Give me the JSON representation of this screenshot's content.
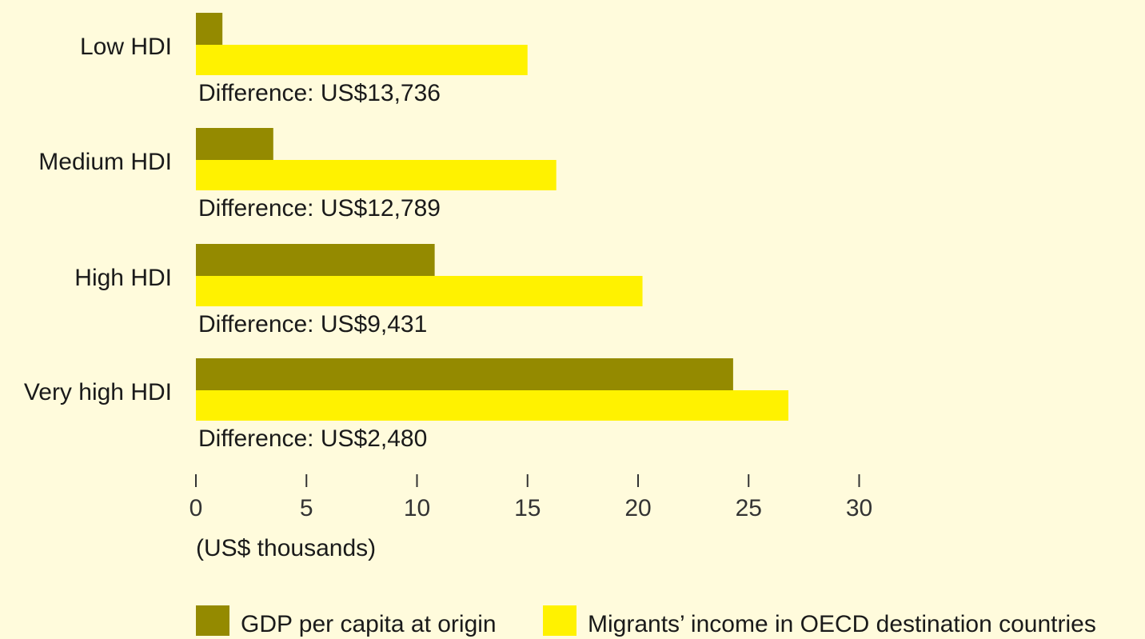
{
  "chart_data": {
    "type": "bar",
    "orientation": "horizontal",
    "categories": [
      "Low HDI",
      "Medium HDI",
      "High HDI",
      "Very high HDI"
    ],
    "series": [
      {
        "name": "GDP per capita at origin",
        "color": "#948A00",
        "values": [
          1.2,
          3.5,
          10.8,
          24.3
        ]
      },
      {
        "name": "Migrants’ income in OECD destination countries",
        "color": "#FFF200",
        "values": [
          15.0,
          16.3,
          20.2,
          26.8
        ]
      }
    ],
    "annotations": [
      "Difference: US$13,736",
      "Difference: US$12,789",
      "Difference: US$9,431",
      "Difference: US$2,480"
    ],
    "xlim": [
      0,
      30
    ],
    "xticks": [
      "0",
      "5",
      "10",
      "15",
      "20",
      "25",
      "30"
    ],
    "xlabel": "(US$ thousands)",
    "title": "",
    "ylabel": "",
    "grid": false,
    "legend_position": "bottom"
  }
}
